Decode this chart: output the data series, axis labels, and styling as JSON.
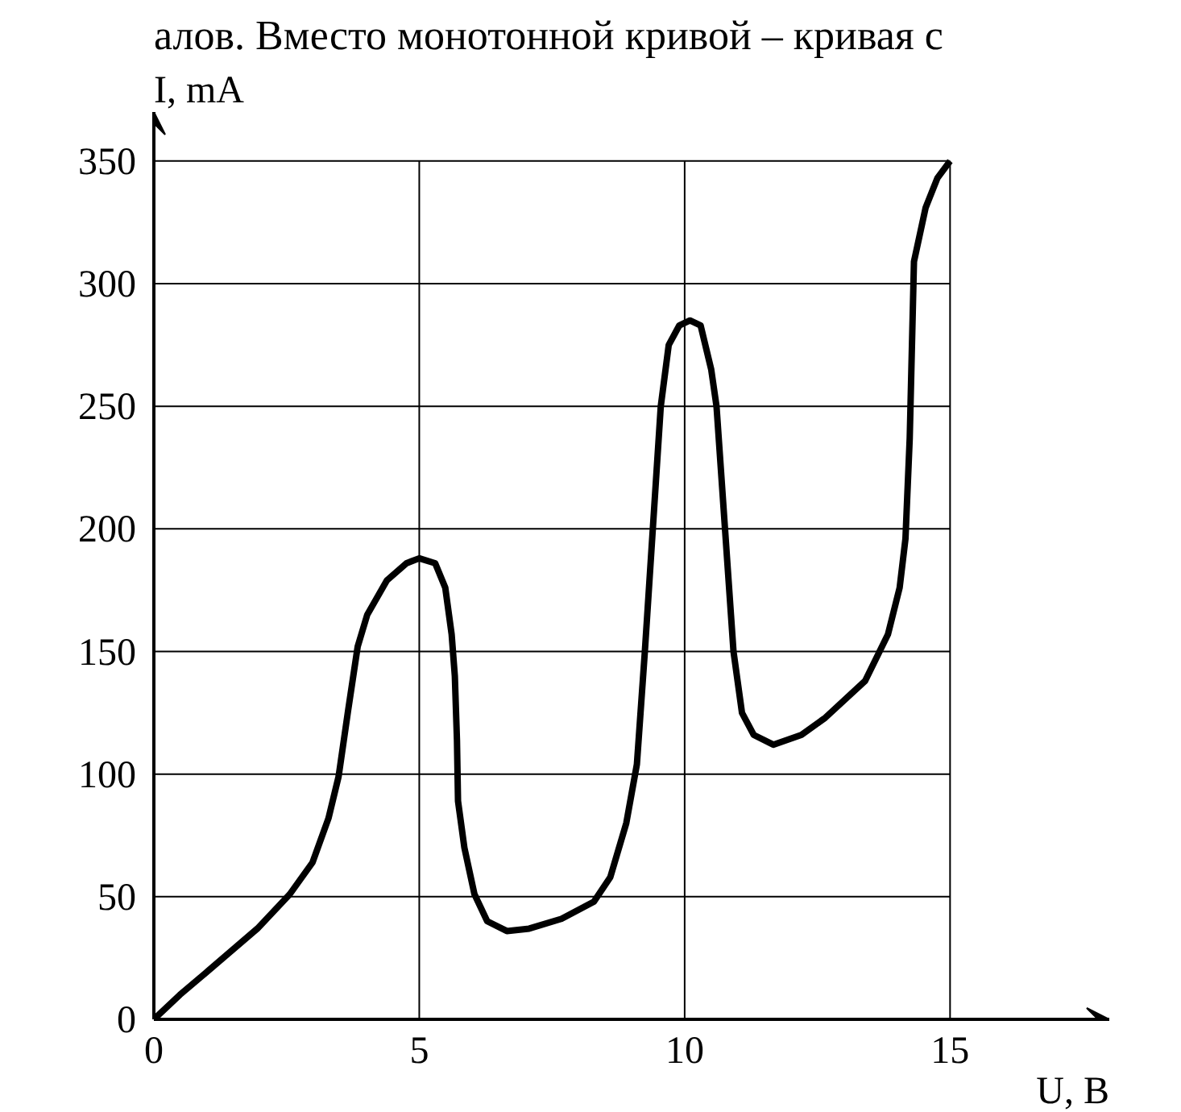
{
  "chart_data": {
    "type": "line",
    "xlabel": "U, B",
    "ylabel": "I, mA",
    "annotations": [
      "алов. Вместо монотонной кривой – кривая с"
    ],
    "x": [
      0,
      0.49,
      0.98,
      1.95,
      2.56,
      2.99,
      3.29,
      3.48,
      3.66,
      3.84,
      4.02,
      4.39,
      4.76,
      5.0,
      5.3,
      5.49,
      5.61,
      5.67,
      5.71,
      5.73,
      5.85,
      6.04,
      6.28,
      6.65,
      7.07,
      7.68,
      8.29,
      8.6,
      8.9,
      9.1,
      9.25,
      9.4,
      9.55,
      9.7,
      9.9,
      10.1,
      10.3,
      10.5,
      10.6,
      10.76,
      10.92,
      11.08,
      11.3,
      11.67,
      12.2,
      12.65,
      13.4,
      13.83,
      14.05,
      14.16,
      14.24,
      14.32,
      14.54,
      14.76,
      15
    ],
    "series": [
      {
        "color": "#000000",
        "values": [
          0,
          10,
          19,
          37,
          51,
          64,
          82,
          99,
          126,
          152,
          165,
          179,
          186,
          188,
          186,
          176,
          157,
          140,
          114,
          89,
          70,
          51,
          40,
          36,
          37,
          41,
          48,
          58,
          80,
          104,
          150,
          200,
          250,
          275,
          283,
          285,
          283,
          265,
          250,
          200,
          150,
          125,
          116,
          112,
          116,
          123,
          138,
          157,
          176,
          196,
          237,
          309,
          331,
          343,
          350
        ]
      }
    ],
    "xlim": [
      0,
      18
    ],
    "ylim": [
      0,
      370
    ],
    "xticks": [
      0,
      5,
      10,
      15
    ],
    "yticks": [
      0,
      50,
      100,
      150,
      200,
      250,
      300,
      350
    ],
    "grid": true,
    "marker": "none",
    "line_style": "solid"
  }
}
